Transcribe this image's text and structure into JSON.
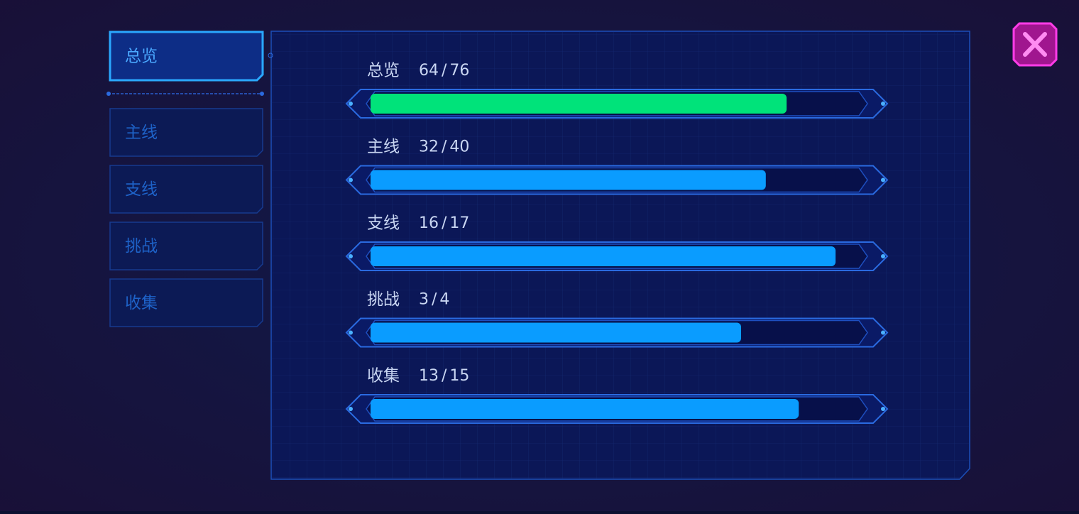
{
  "tabs": [
    "总览",
    "主线",
    "支线",
    "挑战",
    "收集"
  ],
  "active_tab": 0,
  "separator": "/",
  "progress": [
    {
      "name": "总览",
      "done": 64,
      "total": 76,
      "color": "#00e37a"
    },
    {
      "name": "主线",
      "done": 32,
      "total": 40,
      "color": "#0a9cff"
    },
    {
      "name": "支线",
      "done": 16,
      "total": 17,
      "color": "#0a9cff"
    },
    {
      "name": "挑战",
      "done": 3,
      "total": 4,
      "color": "#0a9cff"
    },
    {
      "name": "收集",
      "done": 13,
      "total": 15,
      "color": "#0a9cff"
    }
  ]
}
